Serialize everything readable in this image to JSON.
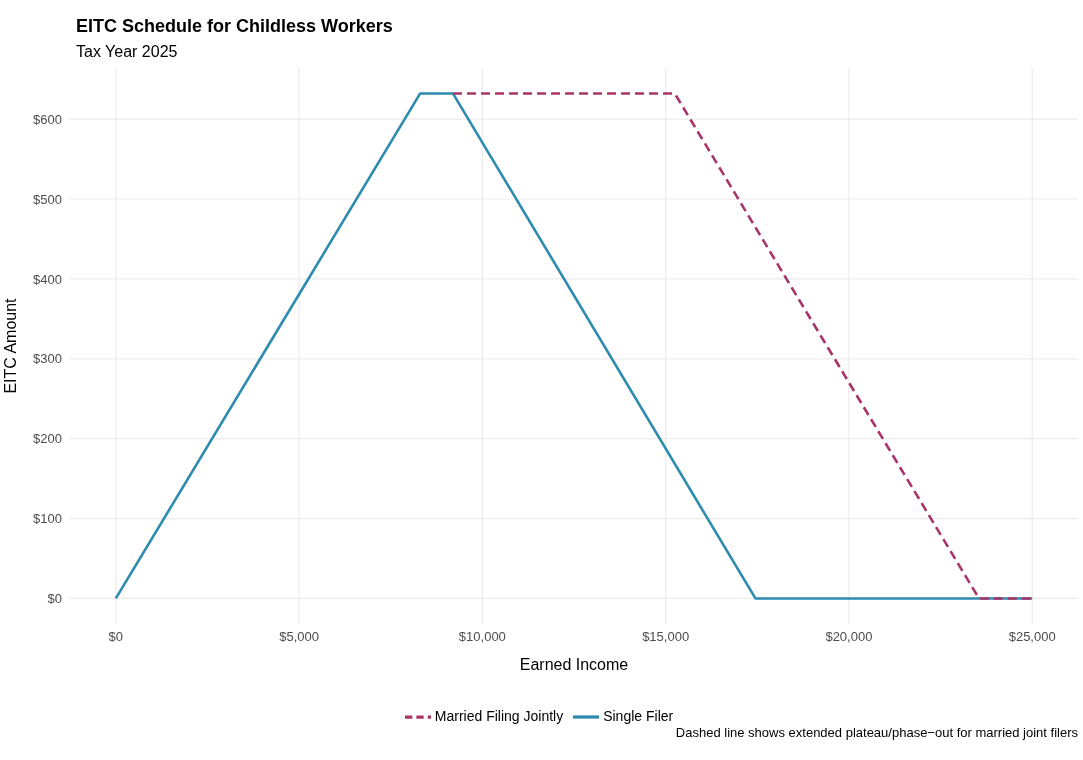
{
  "chart_data": {
    "type": "line",
    "title": "EITC Schedule for Childless Workers",
    "subtitle": "Tax Year 2025",
    "xlabel": "Earned Income",
    "ylabel": "EITC Amount",
    "annotations": [
      "Dashed line shows extended plateau/phase−out for married joint filers"
    ],
    "series": [
      {
        "name": "Married Filing Jointly",
        "color": "#a8346a",
        "line_style": "dashed",
        "x": [
          9200,
          15250,
          23550,
          25000
        ],
        "values": [
          632,
          632,
          0,
          0
        ]
      },
      {
        "name": "Single Filer",
        "color": "#2e8bb0",
        "line_style": "solid",
        "x": [
          0,
          8300,
          9200,
          17450,
          25000
        ],
        "values": [
          0,
          632,
          632,
          0,
          0
        ]
      }
    ],
    "xlim": [
      -1250,
      26250
    ],
    "xticks": [
      {
        "value": 0,
        "label": "$0"
      },
      {
        "value": 5000,
        "label": "$5,000"
      },
      {
        "value": 10000,
        "label": "$10,000"
      },
      {
        "value": 15000,
        "label": "$15,000"
      },
      {
        "value": 20000,
        "label": "$20,000"
      },
      {
        "value": 25000,
        "label": "$25,000"
      }
    ],
    "ylim": [
      -32,
      664
    ],
    "yticks": [
      {
        "value": 0,
        "label": "$0"
      },
      {
        "value": 100,
        "label": "$100"
      },
      {
        "value": 200,
        "label": "$200"
      },
      {
        "value": 300,
        "label": "$300"
      },
      {
        "value": 400,
        "label": "$400"
      },
      {
        "value": 500,
        "label": "$500"
      },
      {
        "value": 600,
        "label": "$600"
      }
    ],
    "grid": true,
    "legend": "bottom",
    "marker": "none"
  }
}
